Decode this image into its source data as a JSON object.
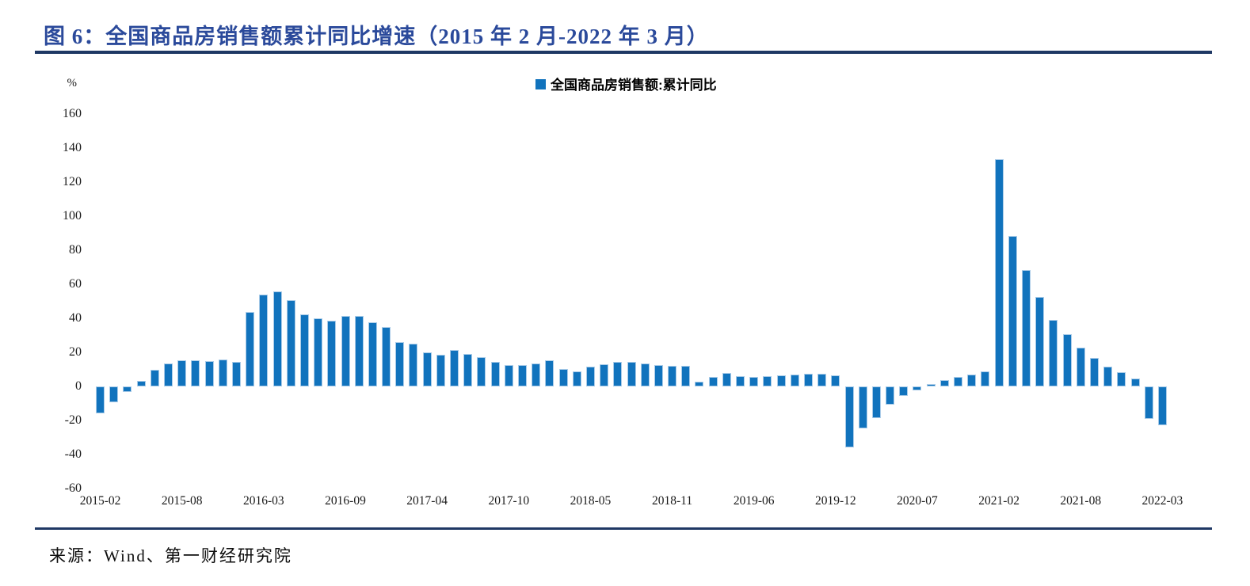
{
  "title": "图 6：全国商品房销售额累计同比增速（2015 年 2 月-2022 年 3 月）",
  "legend": {
    "marker": "blue-square",
    "label": "全国商品房销售额:累计同比"
  },
  "source": "来源：Wind、第一财经研究院",
  "colors": {
    "bar": "#1173BD",
    "bar_border": "#A9CBE8",
    "title_text": "#2B4A9B",
    "rule": "#1F3864",
    "axis_text": "#1A1A1A"
  },
  "y_axis": {
    "unit": "%",
    "ticks": [
      160,
      140,
      120,
      100,
      80,
      60,
      40,
      20,
      0,
      -20,
      -40,
      -60
    ]
  },
  "x_axis": {
    "tick_labels": [
      "2015-02",
      "2015-08",
      "2016-03",
      "2016-09",
      "2017-04",
      "2017-10",
      "2018-05",
      "2018-11",
      "2019-06",
      "2019-12",
      "2020-07",
      "2021-02",
      "2021-08",
      "2022-03"
    ],
    "tick_every": 6
  },
  "chart_data": {
    "type": "bar",
    "title": "全国商品房销售额:累计同比",
    "xlabel": "",
    "ylabel": "%",
    "ylim": [
      -60,
      160
    ],
    "ytick_step": 20,
    "grid": false,
    "legend_position": "top-center",
    "categories": [
      "2015-02",
      "2015-03",
      "2015-04",
      "2015-05",
      "2015-06",
      "2015-07",
      "2015-08",
      "2015-09",
      "2015-10",
      "2015-11",
      "2015-12",
      "2016-02",
      "2016-03",
      "2016-04",
      "2016-05",
      "2016-06",
      "2016-07",
      "2016-08",
      "2016-09",
      "2016-10",
      "2016-11",
      "2016-12",
      "2017-02",
      "2017-03",
      "2017-04",
      "2017-05",
      "2017-06",
      "2017-07",
      "2017-08",
      "2017-09",
      "2017-10",
      "2017-11",
      "2017-12",
      "2018-02",
      "2018-03",
      "2018-04",
      "2018-05",
      "2018-06",
      "2018-07",
      "2018-08",
      "2018-09",
      "2018-10",
      "2018-11",
      "2018-12",
      "2019-02",
      "2019-03",
      "2019-04",
      "2019-05",
      "2019-06",
      "2019-07",
      "2019-08",
      "2019-09",
      "2019-10",
      "2019-11",
      "2019-12",
      "2020-02",
      "2020-03",
      "2020-04",
      "2020-05",
      "2020-06",
      "2020-07",
      "2020-08",
      "2020-09",
      "2020-10",
      "2020-11",
      "2020-12",
      "2021-02",
      "2021-03",
      "2021-04",
      "2021-05",
      "2021-06",
      "2021-07",
      "2021-08",
      "2021-09",
      "2021-10",
      "2021-11",
      "2021-12",
      "2022-02",
      "2022-03"
    ],
    "values": [
      -15.8,
      -9.3,
      -3.1,
      3.1,
      10.0,
      13.4,
      15.3,
      15.3,
      14.9,
      15.6,
      14.4,
      43.6,
      54.1,
      55.9,
      50.7,
      42.1,
      39.8,
      38.7,
      41.3,
      41.2,
      37.5,
      34.8,
      26.0,
      25.1,
      20.1,
      18.6,
      21.5,
      18.9,
      17.2,
      14.6,
      12.6,
      12.7,
      13.7,
      15.3,
      10.4,
      9.0,
      11.8,
      13.2,
      14.4,
      14.5,
      13.3,
      12.5,
      12.1,
      12.2,
      2.8,
      5.6,
      8.1,
      6.1,
      5.6,
      6.2,
      6.7,
      7.1,
      7.3,
      7.3,
      6.5,
      -35.9,
      -24.7,
      -18.6,
      -10.6,
      -5.4,
      -2.1,
      1.6,
      3.8,
      5.8,
      7.2,
      8.7,
      133.4,
      88.5,
      68.2,
      52.4,
      38.9,
      30.7,
      22.8,
      16.6,
      11.8,
      8.5,
      4.8,
      -19.3,
      -22.7
    ]
  }
}
